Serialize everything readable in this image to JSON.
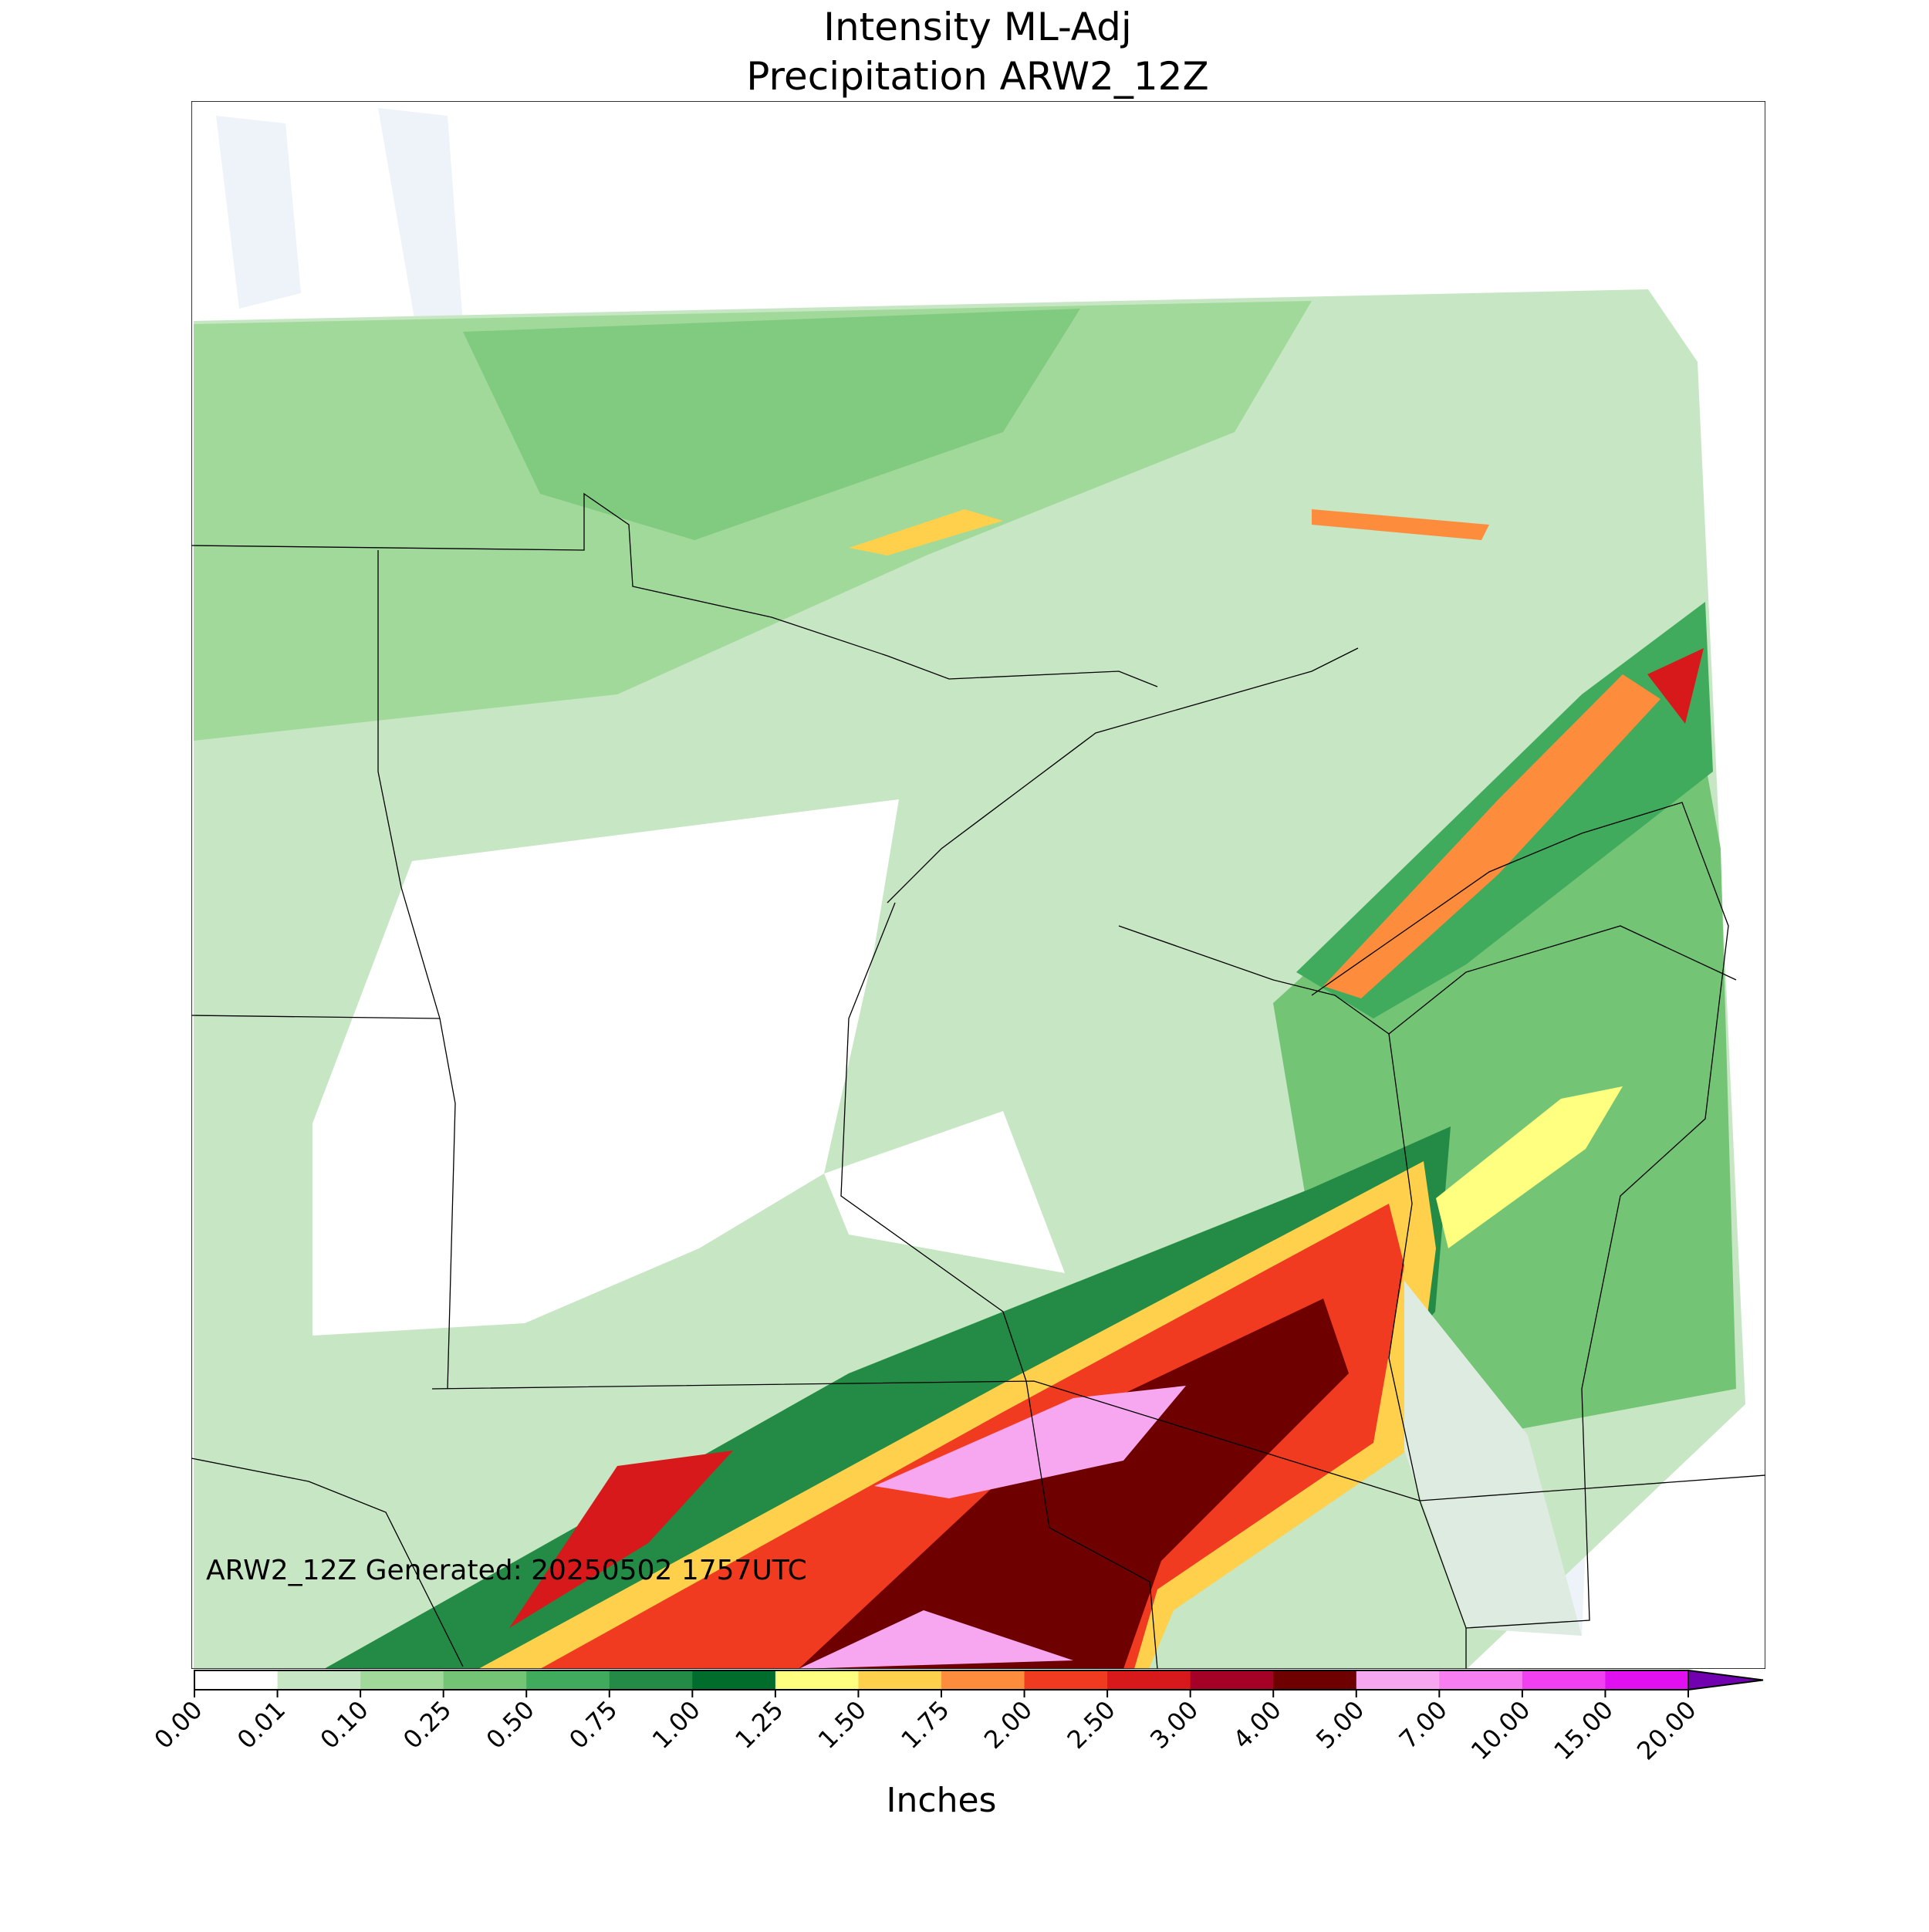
{
  "title": [
    "Intensity ML-Adj",
    "Precipitation ARW2_12Z"
  ],
  "annotation": "ARW2_12Z Generated: 20250502 1757UTC",
  "colorbar": {
    "label": "Inches",
    "ticks": [
      {
        "value": 0,
        "label": "0.00"
      },
      {
        "value": 0.01,
        "label": "0.01"
      },
      {
        "value": 0.1,
        "label": "0.10"
      },
      {
        "value": 0.25,
        "label": "0.25"
      },
      {
        "value": 0.5,
        "label": "0.50"
      },
      {
        "value": 0.75,
        "label": "0.75"
      },
      {
        "value": 1,
        "label": "1.00"
      },
      {
        "value": 1.25,
        "label": "1.25"
      },
      {
        "value": 1.5,
        "label": "1.50"
      },
      {
        "value": 1.75,
        "label": "1.75"
      },
      {
        "value": 2,
        "label": "2.00"
      },
      {
        "value": 2.5,
        "label": "2.50"
      },
      {
        "value": 3,
        "label": "3.00"
      },
      {
        "value": 4,
        "label": "4.00"
      },
      {
        "value": 5,
        "label": "5.00"
      },
      {
        "value": 7,
        "label": "7.00"
      },
      {
        "value": 10,
        "label": "10.00"
      },
      {
        "value": 15,
        "label": "15.00"
      },
      {
        "value": 20,
        "label": "20.00"
      }
    ],
    "colors": [
      "#ffffff",
      "#c7e6c4",
      "#a1d99b",
      "#74c476",
      "#41ab5d",
      "#238b45",
      "#006d2c",
      "#ffff80",
      "#fed04c",
      "#fd8d3c",
      "#f03b20",
      "#d7191c",
      "#a50026",
      "#6e0000",
      "#f7a6f0",
      "#f77ef0",
      "#f040f0",
      "#e010f0",
      "#a000d0"
    ],
    "over_color": "#7000b0",
    "extend": "max"
  }
}
